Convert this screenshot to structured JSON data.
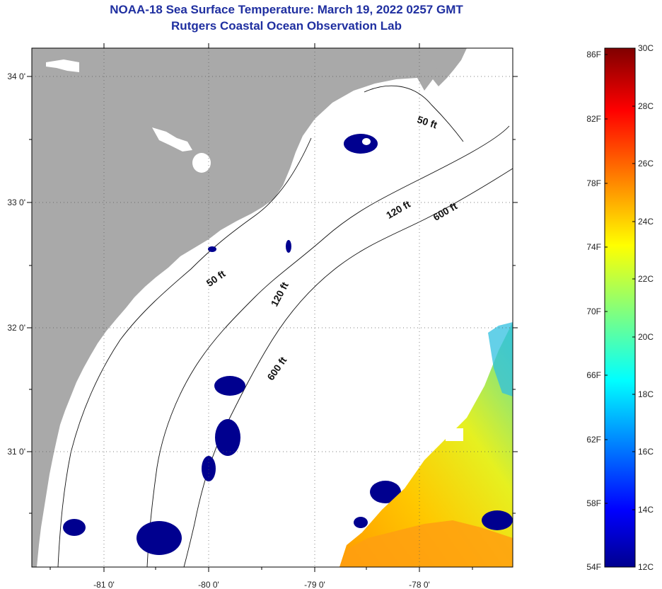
{
  "title": {
    "line1": "NOAA-18 Sea Surface Temperature:  March 19, 2022 0257 GMT",
    "line2": "Rutgers Coastal Ocean Observation Lab"
  },
  "map": {
    "lat_labels": [
      "34 0'",
      "33 0'",
      "32 0'",
      "31 0'"
    ],
    "lon_labels": [
      "-81 0'",
      "-80 0'",
      "-79 0'",
      "-78 0'"
    ],
    "contour_labels": [
      "50 ft",
      "120 ft",
      "600 ft",
      "50 ft",
      "120 ft",
      "600 ft"
    ]
  },
  "colorbar": {
    "fahrenheit": [
      "86F",
      "82F",
      "78F",
      "74F",
      "70F",
      "66F",
      "62F",
      "58F",
      "54F"
    ],
    "celsius": [
      "30C",
      "28C",
      "26C",
      "24C",
      "22C",
      "20C",
      "18C",
      "16C",
      "14C",
      "12C"
    ]
  },
  "colors": {
    "land": "#a9a9a9",
    "coldest": "#00008f",
    "warmest": "#800000",
    "title": "#1f2fa0"
  }
}
